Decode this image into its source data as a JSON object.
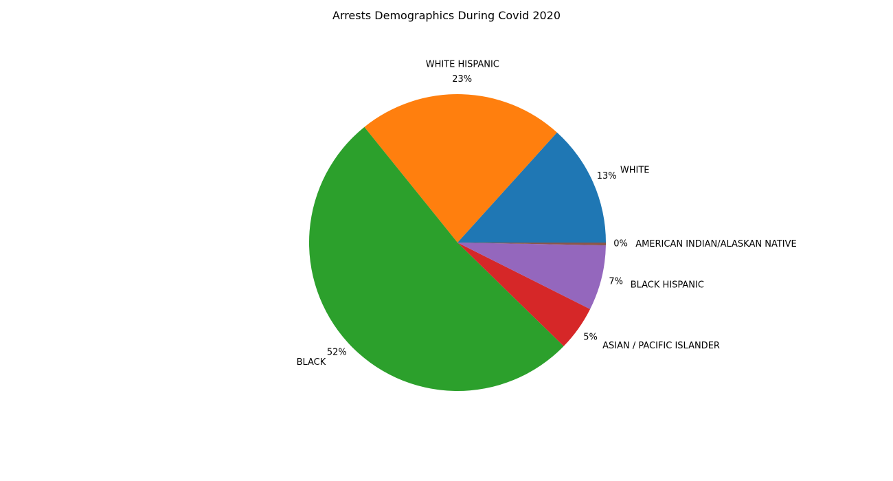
{
  "chart_data": {
    "type": "pie",
    "title": "Arrests Demographics During Covid 2020",
    "start_angle_deg": 0,
    "direction": "counterclockwise",
    "slices": [
      {
        "label": "WHITE",
        "value": 13.3,
        "pct_label": "13%",
        "color": "#1f77b4"
      },
      {
        "label": "WHITE HISPANIC",
        "value": 22.5,
        "pct_label": "23%",
        "color": "#ff7f0e"
      },
      {
        "label": "BLACK",
        "value": 51.9,
        "pct_label": "52%",
        "color": "#2ca02c"
      },
      {
        "label": "ASIAN / PACIFIC ISLANDER",
        "value": 4.9,
        "pct_label": "5%",
        "color": "#d62728"
      },
      {
        "label": "BLACK HISPANIC",
        "value": 7.1,
        "pct_label": "7%",
        "color": "#9467bd"
      },
      {
        "label": "AMERICAN INDIAN/ALASKAN NATIVE",
        "value": 0.3,
        "pct_label": "0%",
        "color": "#8c564b"
      }
    ]
  }
}
